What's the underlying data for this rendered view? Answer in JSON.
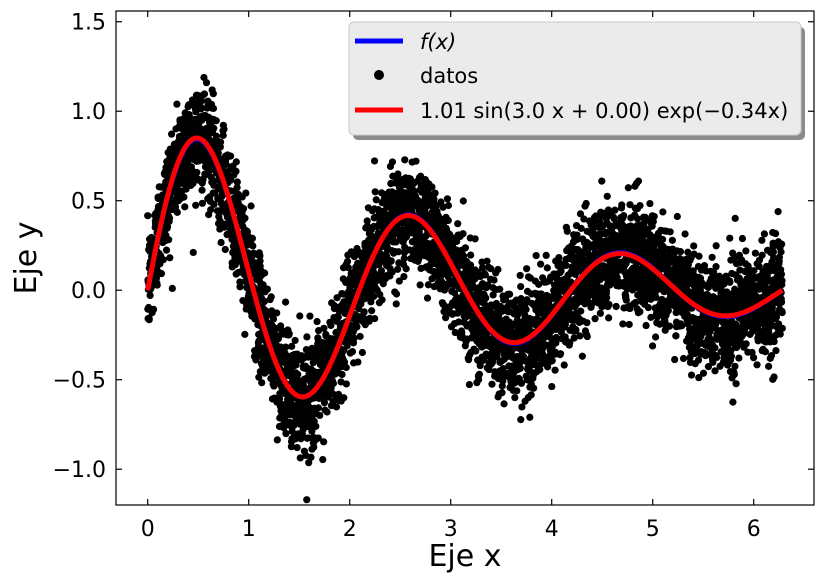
{
  "chart_data": {
    "type": "scatter",
    "title": "",
    "xlabel": "Eje x",
    "ylabel": "Eje y",
    "xlim": [
      -0.314,
      6.597
    ],
    "ylim": [
      -1.2,
      1.56
    ],
    "xticks": [
      0,
      1,
      2,
      3,
      4,
      5,
      6
    ],
    "yticks": [
      -1.0,
      -0.5,
      0.0,
      0.5,
      1.0,
      1.5
    ],
    "xtick_labels": [
      "0",
      "1",
      "2",
      "3",
      "4",
      "5",
      "6"
    ],
    "ytick_labels": [
      "−1.0",
      "−0.5",
      "0.0",
      "0.5",
      "1.0",
      "1.5"
    ],
    "grid": false,
    "legend_position": "top-right",
    "series": [
      {
        "name": "f(x)",
        "kind": "line",
        "color": "#0000ff",
        "formula": "sin(3x)·exp(−x/3)",
        "x": [
          0.0,
          0.25,
          0.5,
          0.75,
          1.0,
          1.25,
          1.5,
          1.75,
          2.0,
          2.25,
          2.5,
          2.75,
          3.0,
          3.25,
          3.5,
          3.75,
          4.0,
          4.25,
          4.5,
          4.75,
          5.0,
          5.25,
          5.5,
          5.75,
          6.0,
          6.28
        ],
        "y": [
          0.0,
          0.63,
          0.85,
          0.61,
          0.1,
          -0.38,
          -0.59,
          -0.45,
          -0.14,
          0.21,
          0.41,
          0.36,
          0.15,
          -0.13,
          -0.28,
          -0.25,
          -0.1,
          0.1,
          0.2,
          0.17,
          0.05,
          -0.07,
          -0.13,
          -0.12,
          -0.06,
          0.0
        ]
      },
      {
        "name": "datos",
        "kind": "scatter",
        "color": "#000000",
        "count": 5000,
        "noise_sd": 0.15
      },
      {
        "name": "1.01 sin(3.0 x + 0.00) exp(−0.34x)",
        "kind": "fit",
        "color": "#ff0000",
        "params": {
          "A": 1.01,
          "w": 3.0,
          "phi": 0.0,
          "k": 0.34
        },
        "x": [
          0.0,
          0.25,
          0.5,
          0.75,
          1.0,
          1.25,
          1.5,
          1.75,
          2.0,
          2.25,
          2.5,
          2.75,
          3.0,
          3.25,
          3.5,
          3.75,
          4.0,
          4.25,
          4.5,
          4.75,
          5.0,
          5.25,
          5.5,
          5.75,
          6.0,
          6.28
        ],
        "y": [
          0.0,
          0.63,
          0.85,
          0.61,
          0.1,
          -0.38,
          -0.59,
          -0.45,
          -0.14,
          0.21,
          0.41,
          0.36,
          0.15,
          -0.13,
          -0.28,
          -0.25,
          -0.1,
          0.1,
          0.2,
          0.17,
          0.05,
          -0.07,
          -0.13,
          -0.12,
          -0.06,
          0.0
        ]
      }
    ],
    "legend": [
      {
        "label": "f(x)",
        "color": "#0000ff",
        "marker": "line"
      },
      {
        "label": "datos",
        "color": "#000000",
        "marker": "dot"
      },
      {
        "label": "1.01 sin(3.0 x + 0.00) exp(−0.34x)",
        "color": "#ff0000",
        "marker": "line"
      }
    ]
  }
}
